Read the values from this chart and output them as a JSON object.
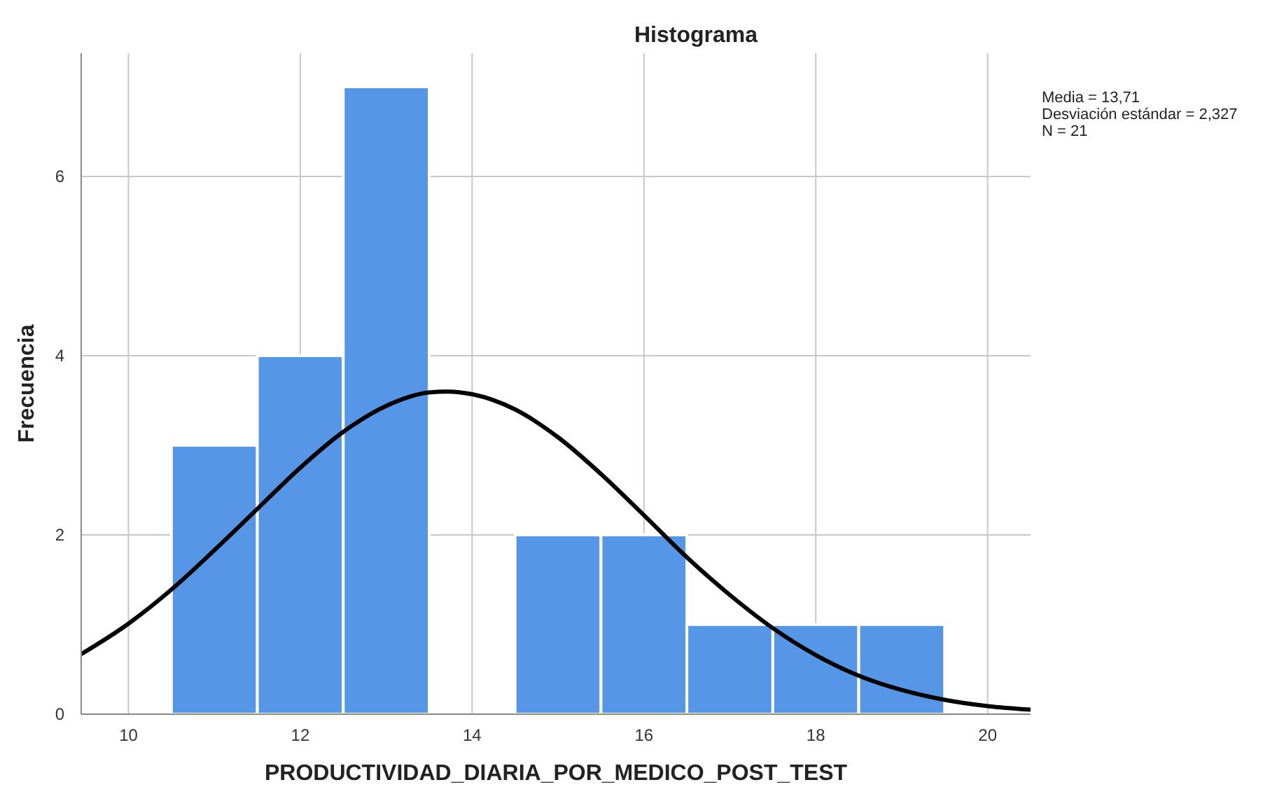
{
  "chart_data": {
    "type": "histogram",
    "title": "Histograma",
    "xlabel": "PRODUCTIVIDAD_DIARIA_POR_MEDICO_POST_TEST",
    "ylabel": "Frecuencia",
    "bins": [
      10.5,
      11.5,
      12.5,
      13.5,
      14.5,
      15.5,
      16.5,
      17.5,
      18.5,
      19.5
    ],
    "values": [
      3,
      4,
      7,
      0,
      2,
      2,
      1,
      1,
      1
    ],
    "color": "#5596e6",
    "series": [
      {
        "type": "line",
        "color": "#000000",
        "x": [
          9.45,
          10,
          10.5,
          11,
          11.5,
          12,
          12.5,
          13,
          13.5,
          13.71,
          14,
          14.5,
          15,
          15.5,
          16,
          16.5,
          17,
          17.5,
          18,
          18.5,
          19,
          19.5,
          20,
          20.5
        ],
        "values": [
          0.67,
          1.01,
          1.39,
          1.83,
          2.29,
          2.75,
          3.15,
          3.44,
          3.59,
          3.6,
          3.57,
          3.4,
          3.09,
          2.68,
          2.22,
          1.75,
          1.33,
          0.96,
          0.66,
          0.43,
          0.27,
          0.16,
          0.09,
          0.05
        ]
      }
    ],
    "xlim": [
      9.45,
      20.5
    ],
    "xticks": [
      10,
      12,
      14,
      16,
      18,
      20
    ],
    "ylim": [
      0,
      7.375
    ],
    "yticks": [
      0,
      2,
      4,
      6
    ],
    "grid": true,
    "line_style": "solid",
    "marker": "none",
    "annotations": [
      "Media = 13,71",
      "Desviación estándar = 2,327",
      "N = 21"
    ]
  }
}
